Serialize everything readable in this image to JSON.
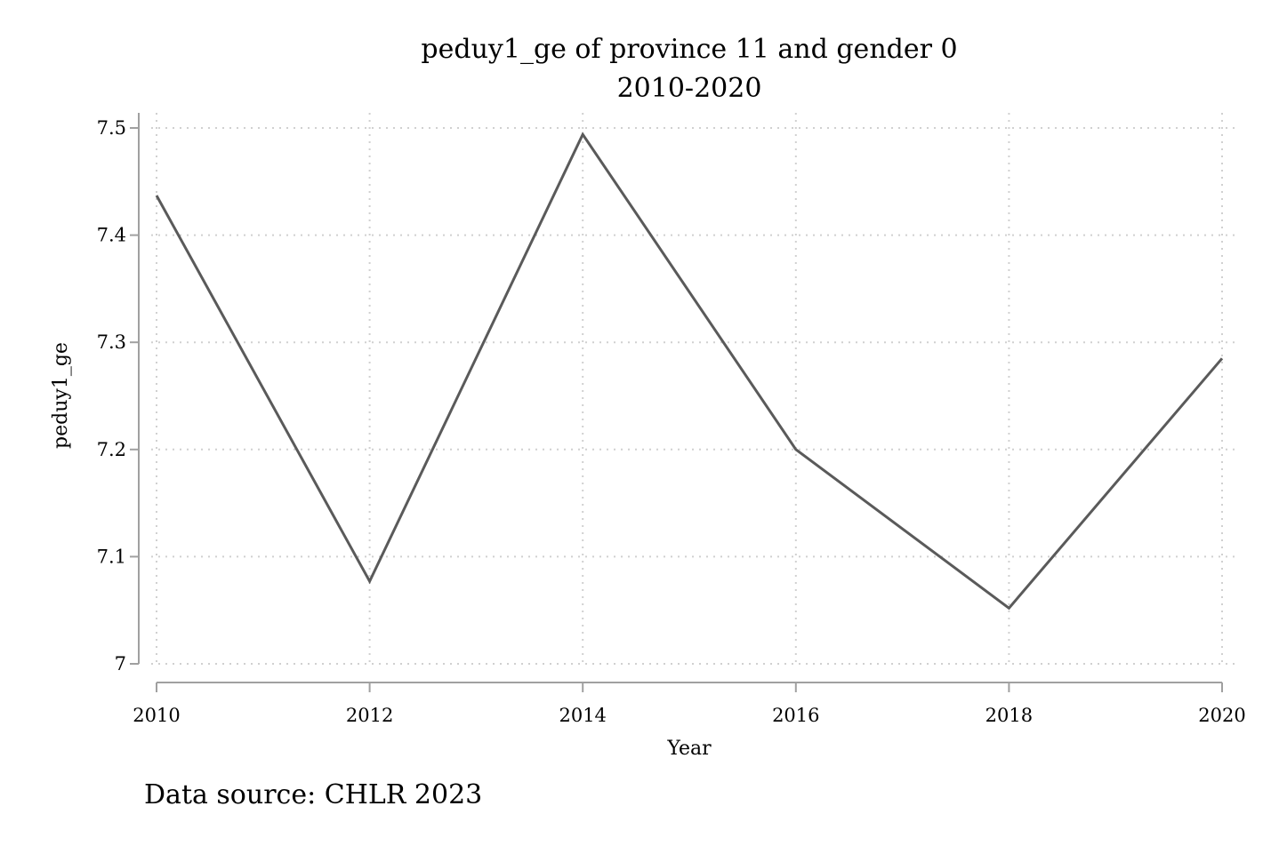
{
  "chart_data": {
    "type": "line",
    "title": "peduy1_ge of province 11 and gender 0",
    "subtitle": "2010-2020",
    "xlabel": "Year",
    "ylabel": "peduy1_ge",
    "note": "Data source: CHLR 2023",
    "x": [
      2010,
      2012,
      2014,
      2016,
      2018,
      2020
    ],
    "xticks": [
      "2010",
      "2012",
      "2014",
      "2016",
      "2018",
      "2020"
    ],
    "yticks": [
      "7",
      "7.1",
      "7.2",
      "7.3",
      "7.4",
      "7.5"
    ],
    "ytick_values": [
      7,
      7.1,
      7.2,
      7.3,
      7.4,
      7.5
    ],
    "xlim": [
      2010,
      2020
    ],
    "ylim": [
      7,
      7.5
    ],
    "grid": true,
    "series": [
      {
        "values": [
          7.437,
          7.077,
          7.494,
          7.2,
          7.052,
          7.285
        ]
      }
    ],
    "line_color": "#5a5a5a",
    "grid_color": "#d0d0d0",
    "axis_color": "#a0a0a0"
  }
}
